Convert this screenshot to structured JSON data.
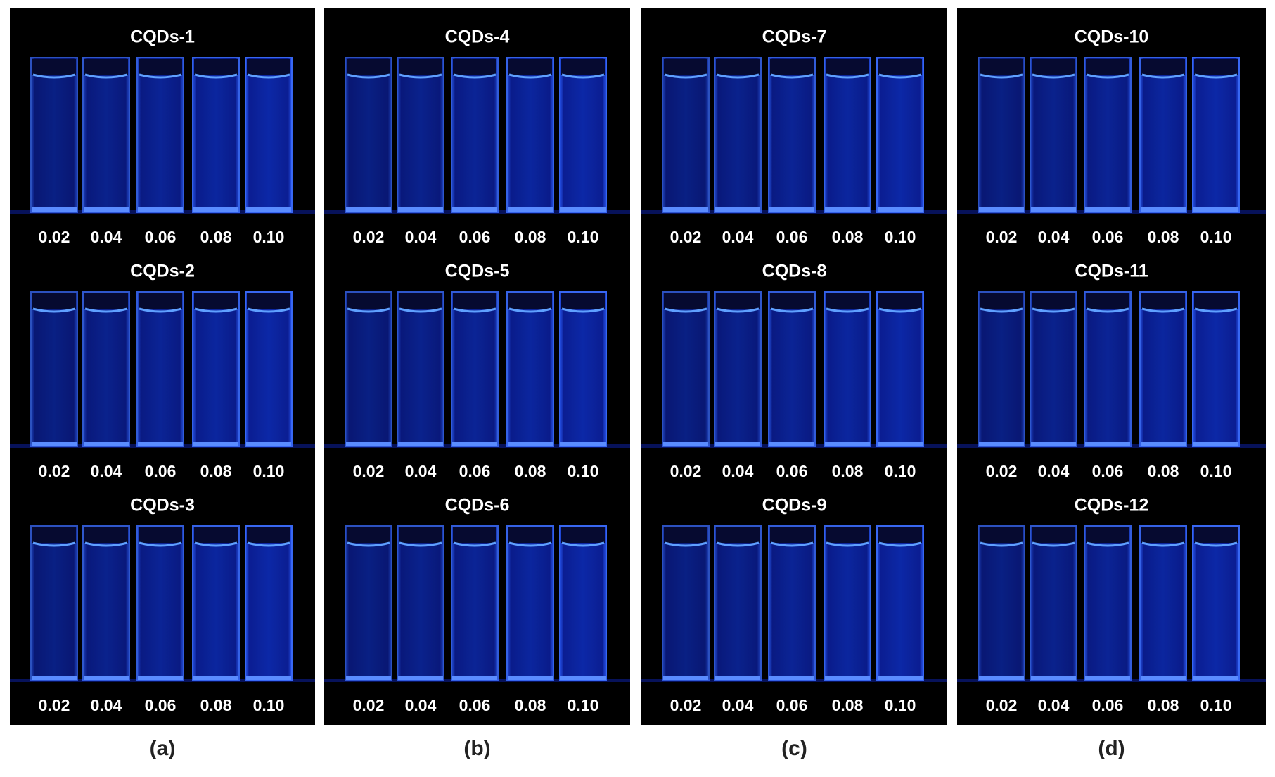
{
  "panels": [
    {
      "label": "(a)",
      "rows": [
        {
          "title": "CQDs-1",
          "concentrations": [
            "0.02",
            "0.04",
            "0.06",
            "0.08",
            "0.10"
          ]
        },
        {
          "title": "CQDs-2",
          "concentrations": [
            "0.02",
            "0.04",
            "0.06",
            "0.08",
            "0.10"
          ]
        },
        {
          "title": "CQDs-3",
          "concentrations": [
            "0.02",
            "0.04",
            "0.06",
            "0.08",
            "0.10"
          ]
        }
      ]
    },
    {
      "label": "(b)",
      "rows": [
        {
          "title": "CQDs-4",
          "concentrations": [
            "0.02",
            "0.04",
            "0.06",
            "0.08",
            "0.10"
          ]
        },
        {
          "title": "CQDs-5",
          "concentrations": [
            "0.02",
            "0.04",
            "0.06",
            "0.08",
            "0.10"
          ]
        },
        {
          "title": "CQDs-6",
          "concentrations": [
            "0.02",
            "0.04",
            "0.06",
            "0.08",
            "0.10"
          ]
        }
      ]
    },
    {
      "label": "(c)",
      "rows": [
        {
          "title": "CQDs-7",
          "concentrations": [
            "0.02",
            "0.04",
            "0.06",
            "0.08",
            "0.10"
          ]
        },
        {
          "title": "CQDs-8",
          "concentrations": [
            "0.02",
            "0.04",
            "0.06",
            "0.08",
            "0.10"
          ]
        },
        {
          "title": "CQDs-9",
          "concentrations": [
            "0.02",
            "0.04",
            "0.06",
            "0.08",
            "0.10"
          ]
        }
      ]
    },
    {
      "label": "(d)",
      "rows": [
        {
          "title": "CQDs-10",
          "concentrations": [
            "0.02",
            "0.04",
            "0.06",
            "0.08",
            "0.10"
          ]
        },
        {
          "title": "CQDs-11",
          "concentrations": [
            "0.02",
            "0.04",
            "0.06",
            "0.08",
            "0.10"
          ]
        },
        {
          "title": "CQDs-12",
          "concentrations": [
            "0.02",
            "0.04",
            "0.06",
            "0.08",
            "0.10"
          ]
        }
      ]
    }
  ]
}
